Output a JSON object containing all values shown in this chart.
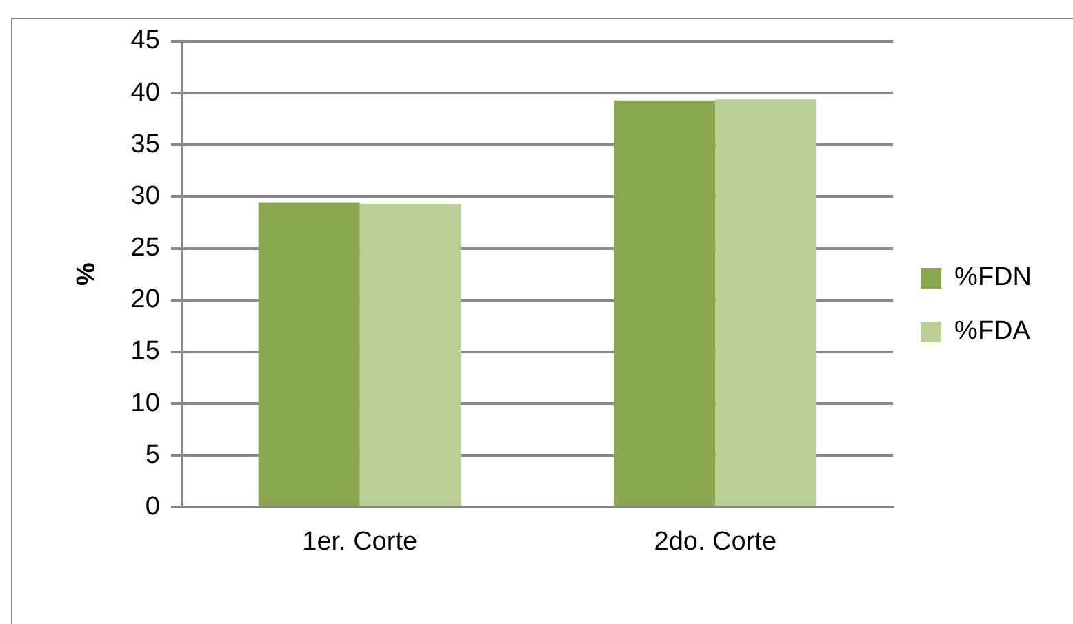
{
  "chart_data": {
    "type": "bar",
    "ylabel": "%",
    "categories": [
      "1er. Corte",
      "2do. Corte"
    ],
    "series": [
      {
        "name": "%FDN",
        "color": "#8aa64f",
        "values": [
          29.4,
          39.3
        ]
      },
      {
        "name": "%FDA",
        "color": "#b9cf95",
        "values": [
          29.3,
          39.4
        ]
      }
    ],
    "ylim": [
      0,
      45
    ],
    "yticks": [
      0,
      5,
      10,
      15,
      20,
      25,
      30,
      35,
      40,
      45
    ],
    "grid": "y",
    "legend": "right"
  }
}
